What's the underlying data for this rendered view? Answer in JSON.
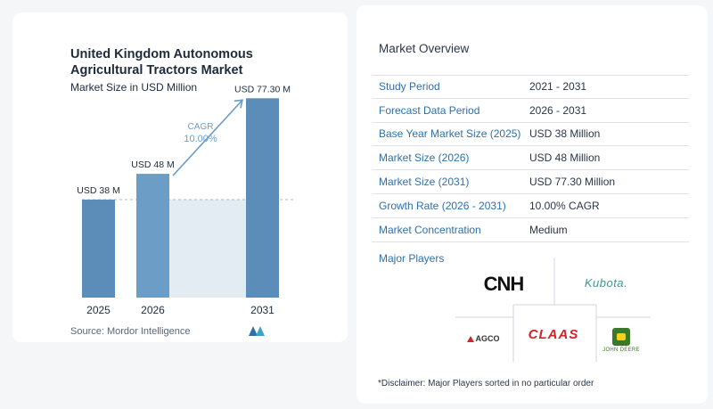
{
  "chart_data": {
    "type": "bar",
    "title": "United Kingdom Autonomous Agricultural Tractors Market",
    "subtitle": "Market Size in USD Million",
    "categories": [
      "2025",
      "2026",
      "2031"
    ],
    "values": [
      38,
      48,
      77.3
    ],
    "value_labels": [
      "USD 38 M",
      "USD 48 M",
      "USD 77.30 M"
    ],
    "ylim": [
      0,
      85
    ],
    "grid": false,
    "annotation": {
      "label": "CAGR",
      "value": "10.00%"
    },
    "colors": {
      "bar": "#5b8db8",
      "bar_light": "#6b9dc6",
      "highlight": "#e3ebf3",
      "arrow": "#6b9dc6",
      "baseline": "#aeb8c4"
    }
  },
  "source": "Source:  Mordor Intelligence",
  "overview": {
    "heading": "Market Overview",
    "rows": [
      {
        "label": "Study Period",
        "value": "2021 - 2031"
      },
      {
        "label": "Forecast Data Period",
        "value": "2026 - 2031"
      },
      {
        "label": "Base Year Market Size (2025)",
        "value": "USD 38 Million"
      },
      {
        "label": "Market Size (2026)",
        "value": "USD 48 Million"
      },
      {
        "label": "Market Size (2031)",
        "value": "USD 77.30 Million"
      },
      {
        "label": "Growth Rate (2026 - 2031)",
        "value": "10.00% CAGR"
      },
      {
        "label": "Market Concentration",
        "value": "Medium"
      }
    ]
  },
  "players": {
    "heading": "Major Players",
    "logos": {
      "cnh": "CNH",
      "kubota": "Kubota.",
      "agco": "AGCO",
      "claas": "CLAAS",
      "john_deere": "JOHN DEERE"
    },
    "logo_icons": [
      "agco-triangle-icon",
      "john-deere-deer-icon"
    ]
  },
  "disclaimer": "*Disclaimer: Major Players sorted in no particular order"
}
